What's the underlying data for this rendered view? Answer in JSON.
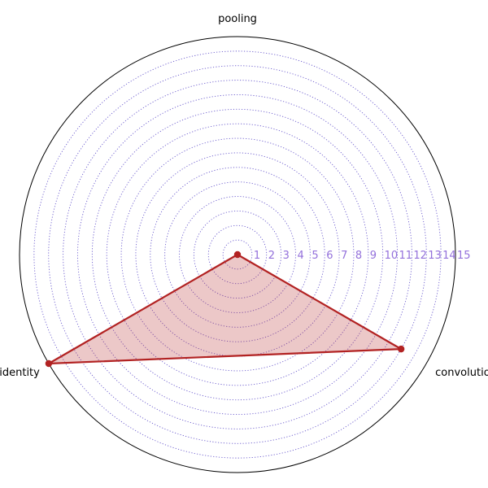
{
  "chart_data": {
    "type": "radar",
    "axes": [
      "pooling",
      "convolution",
      "identity"
    ],
    "series": [
      {
        "values": [
          0,
          13,
          15
        ]
      }
    ],
    "radial_ticks": [
      "1",
      "2",
      "3",
      "4",
      "5",
      "6",
      "7",
      "8",
      "9",
      "10",
      "11",
      "12",
      "13",
      "14",
      "15"
    ],
    "rlim": [
      0,
      15
    ],
    "grid": true,
    "colors": {
      "series_line": "#b22222",
      "series_fill": "#b22222",
      "grid": "#6a5acd",
      "tick_label": "#9370db",
      "frame": "#000000"
    }
  }
}
